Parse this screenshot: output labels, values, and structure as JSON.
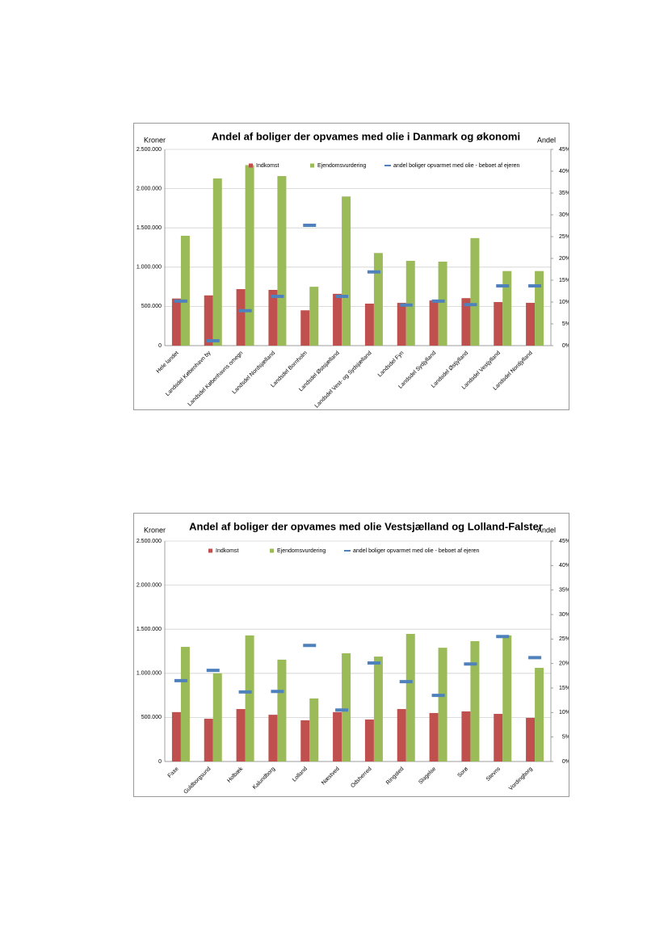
{
  "chart_data": [
    {
      "type": "bar",
      "title": "Andel af boliger der opvames med olie i Danmark og økonomi",
      "ylabel": "Kroner",
      "y2label": "Andel",
      "categories": [
        "Hele landet",
        "Landsdel København by",
        "Landsdel Københavns omegn",
        "Landsdel Nordsjælland",
        "Landsdel Bornholm",
        "Landsdel Østsjælland",
        "Landsdel Vest- og Sydsjælland",
        "Landsdel Fyn",
        "Landsdel Sydjylland",
        "Landsdel Østjylland",
        "Landsdel Vestjylland",
        "Landsdel Nordjylland"
      ],
      "series": [
        {
          "name": "Indkomst",
          "color": "#c0504d",
          "values": [
            600000,
            640000,
            720000,
            710000,
            450000,
            660000,
            535000,
            545000,
            575000,
            605000,
            555000,
            545000
          ]
        },
        {
          "name": "Ejendomsvurdering",
          "color": "#9bbb59",
          "values": [
            1400000,
            2130000,
            2300000,
            2160000,
            750000,
            1900000,
            1180000,
            1080000,
            1070000,
            1370000,
            950000,
            950000
          ]
        },
        {
          "name": "andel boliger opvarmet med olie - beboet af ejeren",
          "color": "#4f81bd",
          "axis": "y2",
          "values": [
            10.2,
            1.1,
            8.0,
            11.3,
            27.6,
            11.3,
            16.9,
            9.3,
            10.2,
            9.4,
            13.7,
            13.7
          ]
        }
      ],
      "ylim": [
        0,
        2500000
      ],
      "yticks": [
        0,
        {
          "value": 500000,
          "label": "500.000"
        },
        {
          "value": 1000000,
          "label": "1.000.000"
        },
        {
          "value": 1500000,
          "label": "1.500.000"
        },
        {
          "value": 2000000,
          "label": "2.000.000"
        },
        {
          "value": 2500000,
          "label": "2.500.000"
        }
      ],
      "y2lim": [
        0,
        45
      ],
      "y2ticks": [
        {
          "value": 0,
          "label": "0%"
        },
        {
          "value": 5,
          "label": "5%"
        },
        {
          "value": 10,
          "label": "10%"
        },
        {
          "value": 15,
          "label": "15%"
        },
        {
          "value": 20,
          "label": "20%"
        },
        {
          "value": 25,
          "label": "25%"
        },
        {
          "value": 30,
          "label": "30%"
        },
        {
          "value": 35,
          "label": "35%"
        },
        {
          "value": 40,
          "label": "40%"
        },
        {
          "value": 45,
          "label": "45%"
        }
      ],
      "grid": true,
      "legend": "top"
    },
    {
      "type": "bar",
      "title": "Andel af boliger der opvames med olie Vestsjælland og Lolland-Falster",
      "ylabel": "Kroner",
      "y2label": "Andel",
      "categories": [
        "Faxe",
        "Guldborgsund",
        "Holbæk",
        "Kalundborg",
        "Lolland",
        "Næstved",
        "Odsherred",
        "Ringsted",
        "Slagelse",
        "Sorø",
        "Stevns",
        "Vordingborg"
      ],
      "series": [
        {
          "name": "Indkomst",
          "color": "#c0504d",
          "values": [
            560000,
            485000,
            595000,
            530000,
            467000,
            560000,
            476000,
            595000,
            550000,
            568000,
            540000,
            495000
          ]
        },
        {
          "name": "Ejendomsvurdering",
          "color": "#9bbb59",
          "values": [
            1300000,
            1000000,
            1430000,
            1155000,
            715000,
            1227000,
            1190000,
            1447000,
            1290000,
            1365000,
            1430000,
            1062000
          ]
        },
        {
          "name": "andel boliger opvarmet med olie - beboet af ejeren",
          "color": "#4f81bd",
          "axis": "y2",
          "values": [
            16.5,
            18.6,
            14.2,
            14.3,
            23.7,
            10.5,
            20.1,
            16.3,
            13.5,
            19.9,
            25.5,
            21.2
          ]
        }
      ],
      "ylim": [
        0,
        2500000
      ],
      "yticks": [
        0,
        {
          "value": 500000,
          "label": "500.000"
        },
        {
          "value": 1000000,
          "label": "1.000.000"
        },
        {
          "value": 1500000,
          "label": "1.500.000"
        },
        {
          "value": 2000000,
          "label": "2.000.000"
        },
        {
          "value": 2500000,
          "label": "2.500.000"
        }
      ],
      "y2lim": [
        0,
        45
      ],
      "y2ticks": [
        {
          "value": 0,
          "label": "0%"
        },
        {
          "value": 5,
          "label": "5%"
        },
        {
          "value": 10,
          "label": "10%"
        },
        {
          "value": 15,
          "label": "15%"
        },
        {
          "value": 20,
          "label": "20%"
        },
        {
          "value": 25,
          "label": "25%"
        },
        {
          "value": 30,
          "label": "30%"
        },
        {
          "value": 35,
          "label": "35%"
        },
        {
          "value": 40,
          "label": "40%"
        },
        {
          "value": 45,
          "label": "45%"
        }
      ],
      "grid": true,
      "legend": "top"
    }
  ]
}
